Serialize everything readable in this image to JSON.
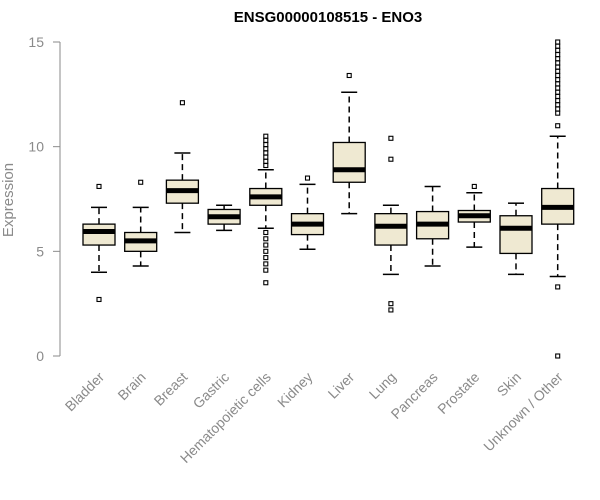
{
  "chart_data": {
    "type": "box",
    "title": "ENSG00000108515 - ENO3",
    "xlabel": "",
    "ylabel": "Expression",
    "ylim": [
      0,
      15
    ],
    "yticks": [
      0,
      5,
      10,
      15
    ],
    "box_fill": "#efe9d2",
    "median_color": "#000000",
    "categories": [
      "Bladder",
      "Brain",
      "Breast",
      "Gastric",
      "Hematopoietic cells",
      "Kidney",
      "Liver",
      "Lung",
      "Pancreas",
      "Prostate",
      "Skin",
      "Unknown / Other"
    ],
    "boxes": [
      {
        "category": "Bladder",
        "whisker_low": 4.0,
        "q1": 5.3,
        "median": 5.95,
        "q3": 6.3,
        "whisker_high": 7.1,
        "outliers": [
          8.1,
          2.7
        ]
      },
      {
        "category": "Brain",
        "whisker_low": 4.3,
        "q1": 5.0,
        "median": 5.5,
        "q3": 5.9,
        "whisker_high": 7.1,
        "outliers": [
          8.3
        ]
      },
      {
        "category": "Breast",
        "whisker_low": 5.9,
        "q1": 7.3,
        "median": 7.9,
        "q3": 8.4,
        "whisker_high": 9.7,
        "outliers": [
          12.1
        ]
      },
      {
        "category": "Gastric",
        "whisker_low": 6.0,
        "q1": 6.3,
        "median": 6.65,
        "q3": 7.0,
        "whisker_high": 7.2,
        "outliers": []
      },
      {
        "category": "Hematopoietic cells",
        "whisker_low": 6.1,
        "q1": 7.2,
        "median": 7.6,
        "q3": 8.0,
        "whisker_high": 8.9,
        "outliers": [
          10.5,
          10.3,
          10.1,
          9.9,
          9.7,
          9.5,
          9.3,
          9.1,
          5.9,
          5.6,
          5.3,
          5.0,
          4.7,
          4.4,
          4.1,
          3.5
        ]
      },
      {
        "category": "Kidney",
        "whisker_low": 5.1,
        "q1": 5.8,
        "median": 6.3,
        "q3": 6.8,
        "whisker_high": 8.2,
        "outliers": [
          8.5
        ]
      },
      {
        "category": "Liver",
        "whisker_low": 6.8,
        "q1": 8.3,
        "median": 8.9,
        "q3": 10.2,
        "whisker_high": 12.6,
        "outliers": [
          13.4
        ]
      },
      {
        "category": "Lung",
        "whisker_low": 3.9,
        "q1": 5.3,
        "median": 6.2,
        "q3": 6.8,
        "whisker_high": 7.2,
        "outliers": [
          10.4,
          9.4,
          2.5,
          2.2
        ]
      },
      {
        "category": "Pancreas",
        "whisker_low": 4.3,
        "q1": 5.6,
        "median": 6.3,
        "q3": 6.9,
        "whisker_high": 8.1,
        "outliers": []
      },
      {
        "category": "Prostate",
        "whisker_low": 5.2,
        "q1": 6.4,
        "median": 6.7,
        "q3": 6.95,
        "whisker_high": 7.8,
        "outliers": [
          8.1
        ]
      },
      {
        "category": "Skin",
        "whisker_low": 3.9,
        "q1": 4.9,
        "median": 6.1,
        "q3": 6.7,
        "whisker_high": 7.3,
        "outliers": []
      },
      {
        "category": "Unknown / Other",
        "whisker_low": 3.8,
        "q1": 6.3,
        "median": 7.1,
        "q3": 8.0,
        "whisker_high": 10.5,
        "outliers": [
          15.0,
          14.8,
          14.6,
          14.4,
          14.2,
          14.0,
          13.8,
          13.6,
          13.4,
          13.2,
          13.0,
          12.8,
          12.6,
          12.4,
          12.2,
          12.0,
          11.8,
          11.6,
          11.0,
          3.3,
          0.0
        ]
      }
    ],
    "grid": false,
    "legend": "none"
  }
}
